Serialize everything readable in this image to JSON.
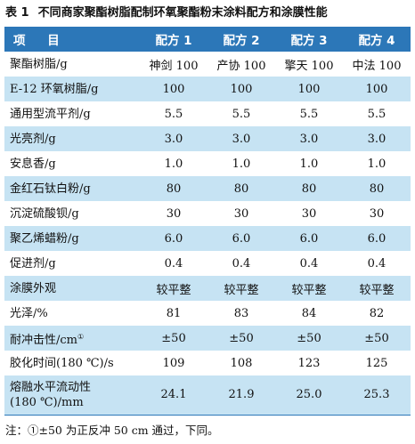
{
  "title": {
    "label": "表 1",
    "text": "不同商家聚酯树脂配制环氧聚酯粉末涂料配方和涂膜性能"
  },
  "table": {
    "header": [
      "项 目",
      "配方 1",
      "配方 2",
      "配方 3",
      "配方 4"
    ],
    "rows": [
      {
        "name": "聚酯树脂/g",
        "values": [
          "神剑 100",
          "产协 100",
          "擎天 100",
          "中法 100"
        ]
      },
      {
        "name": "E-12 环氧树脂/g",
        "values": [
          "100",
          "100",
          "100",
          "100"
        ]
      },
      {
        "name": "通用型流平剂/g",
        "values": [
          "5.5",
          "5.5",
          "5.5",
          "5.5"
        ]
      },
      {
        "name": "光亮剂/g",
        "values": [
          "3.0",
          "3.0",
          "3.0",
          "3.0"
        ]
      },
      {
        "name": "安息香/g",
        "values": [
          "1.0",
          "1.0",
          "1.0",
          "1.0"
        ]
      },
      {
        "name": "金红石钛白粉/g",
        "values": [
          "80",
          "80",
          "80",
          "80"
        ]
      },
      {
        "name": "沉淀硫酸钡/g",
        "values": [
          "30",
          "30",
          "30",
          "30"
        ]
      },
      {
        "name": "聚乙烯蜡粉/g",
        "values": [
          "6.0",
          "6.0",
          "6.0",
          "6.0"
        ]
      },
      {
        "name": "促进剂/g",
        "values": [
          "0.4",
          "0.4",
          "0.4",
          "0.4"
        ]
      },
      {
        "name": "涂膜外观",
        "values": [
          "较平整",
          "较平整",
          "较平整",
          "较平整"
        ]
      },
      {
        "name": "光泽/%",
        "values": [
          "81",
          "83",
          "84",
          "82"
        ]
      },
      {
        "name": "耐冲击性/cm",
        "sup": "①",
        "values": [
          "±50",
          "±50",
          "±50",
          "±50"
        ]
      },
      {
        "name": "胶化时间(180 ℃)/s",
        "values": [
          "109",
          "108",
          "123",
          "125"
        ]
      },
      {
        "name": "熔融水平流动性",
        "name2": "(180 ℃)/mm",
        "values": [
          "24.1",
          "21.9",
          "25.0",
          "25.3"
        ]
      }
    ]
  },
  "note": "注：①±50 为正反冲 50 cm 通过，下同。"
}
